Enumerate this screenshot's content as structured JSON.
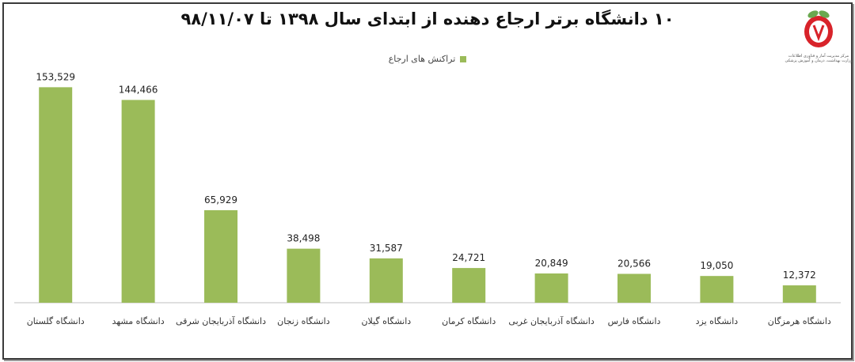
{
  "title": "۱۰ دانشگاه برتر ارجاع دهنده از ابتدای سال ۱۳۹۸ تا ۹۸/۱۱/۰۷",
  "logo": {
    "line1": "مرکز مدیریت آمار و فناوری اطلاعات",
    "line2": "وزارت بهداشت، درمان و آموزش پزشکی"
  },
  "colors": {
    "bar": "#9bbb59",
    "axis": "#bfbfbf",
    "text": "#333333"
  },
  "chart_data": {
    "type": "bar",
    "categories": [
      "دانشگاه گلستان",
      "دانشگاه مشهد",
      "دانشگاه آذربایجان شرقی",
      "دانشگاه زنجان",
      "دانشگاه گیلان",
      "دانشگاه کرمان",
      "دانشگاه آذربایجان غربی",
      "دانشگاه فارس",
      "دانشگاه یزد",
      "دانشگاه هرمزگان"
    ],
    "series": [
      {
        "name": "تراکنش های ارجاع",
        "values": [
          153529,
          144466,
          65929,
          38498,
          31587,
          24721,
          20849,
          20566,
          19050,
          12372
        ],
        "labels": [
          "153,529",
          "144,466",
          "65,929",
          "38,498",
          "31,587",
          "24,721",
          "20,849",
          "20,566",
          "19,050",
          "12,372"
        ]
      }
    ],
    "ylim": [
      0,
      160000
    ],
    "legend_position": "top-center",
    "grid": false
  }
}
